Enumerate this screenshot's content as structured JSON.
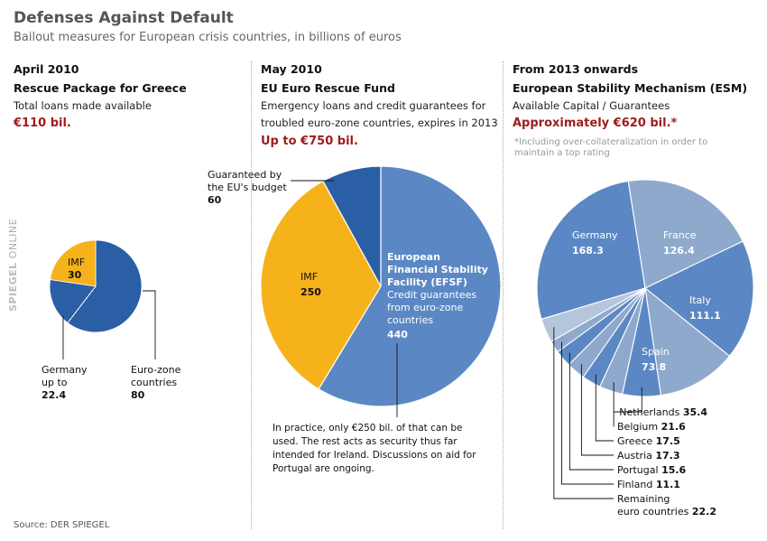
{
  "header": {
    "title": "Defenses Against Default",
    "subtitle": "Bailout measures for European crisis countries, in billions of euros"
  },
  "columns": [
    {
      "date": "April 2010",
      "name": "Rescue Package for Greece",
      "desc_lines": [
        "Total loans made available"
      ],
      "amount": "€110 bil."
    },
    {
      "date": "May 2010",
      "name": "EU Euro Rescue Fund",
      "desc_lines": [
        "Emergency loans and credit guarantees for",
        "troubled euro-zone countries, expires in 2013"
      ],
      "amount": "Up to €750 bil."
    },
    {
      "date": "From 2013 onwards",
      "name": "European Stability Mechanism (ESM)",
      "desc_lines": [
        "Available Capital / Guarantees"
      ],
      "amount": "Approximately €620 bil.*",
      "note_lines": [
        "*Including over-collateralization in order to",
        "maintain a top rating"
      ]
    }
  ],
  "labels": {
    "greece_imf": "IMF",
    "greece_imf_value": "30",
    "greece_germany": [
      "Germany",
      "up to"
    ],
    "greece_germany_value": "22.4",
    "greece_eurozone": [
      "Euro-zone",
      "countries"
    ],
    "greece_eurozone_value": "80",
    "efsf_budget": [
      "Guaranteed by",
      "the EU's budget"
    ],
    "efsf_budget_value": "60",
    "efsf_imf": "IMF",
    "efsf_imf_value": "250",
    "efsf_main_bold": [
      "European",
      "Financial Stability",
      "Facility (EFSF)"
    ],
    "efsf_main_text": [
      "Credit guarantees",
      "from euro-zone",
      "countries"
    ],
    "efsf_main_value": "440",
    "efsf_note": [
      "In practice, only €250 bil. of that can be",
      "used. The rest acts as security thus far",
      "intended for Ireland. Discussions on aid for",
      "Portugal are ongoing."
    ],
    "esm_remaining": [
      "Remaining",
      "euro countries"
    ]
  },
  "footer": {
    "source": "Source: DER SPIEGEL",
    "brand_bold": "SPIEGEL",
    "brand_text": "ONLINE"
  },
  "colors": {
    "dark_blue": "#2a5fa5",
    "mid_blue": "#5b88c4",
    "light_blue": "#8fa9cc",
    "pale_blue": "#b5c6dc",
    "orange": "#f6b21a",
    "accent_red": "#9e1b1b"
  },
  "chart_data": [
    {
      "type": "pie",
      "title": "Rescue Package for Greece",
      "total": 110,
      "slices": [
        {
          "name": "Euro-zone countries",
          "value": 80
        },
        {
          "name": "Germany up to",
          "value": 22.4
        },
        {
          "name": "IMF",
          "value": 30
        }
      ]
    },
    {
      "type": "pie",
      "title": "EU Euro Rescue Fund",
      "total": 750,
      "slices": [
        {
          "name": "European Financial Stability Facility (EFSF)",
          "value": 440
        },
        {
          "name": "IMF",
          "value": 250
        },
        {
          "name": "Guaranteed by the EU's budget",
          "value": 60
        }
      ]
    },
    {
      "type": "pie",
      "title": "European Stability Mechanism (ESM)",
      "total": 620,
      "slices": [
        {
          "name": "Germany",
          "value": 168.3
        },
        {
          "name": "France",
          "value": 126.4
        },
        {
          "name": "Italy",
          "value": 111.1
        },
        {
          "name": "Spain",
          "value": 73.8
        },
        {
          "name": "Netherlands",
          "value": 35.4
        },
        {
          "name": "Belgium",
          "value": 21.6
        },
        {
          "name": "Greece",
          "value": 17.5
        },
        {
          "name": "Austria",
          "value": 17.3
        },
        {
          "name": "Portugal",
          "value": 15.6
        },
        {
          "name": "Finland",
          "value": 11.1
        },
        {
          "name": "Remaining euro countries",
          "value": 22.2
        }
      ]
    }
  ]
}
